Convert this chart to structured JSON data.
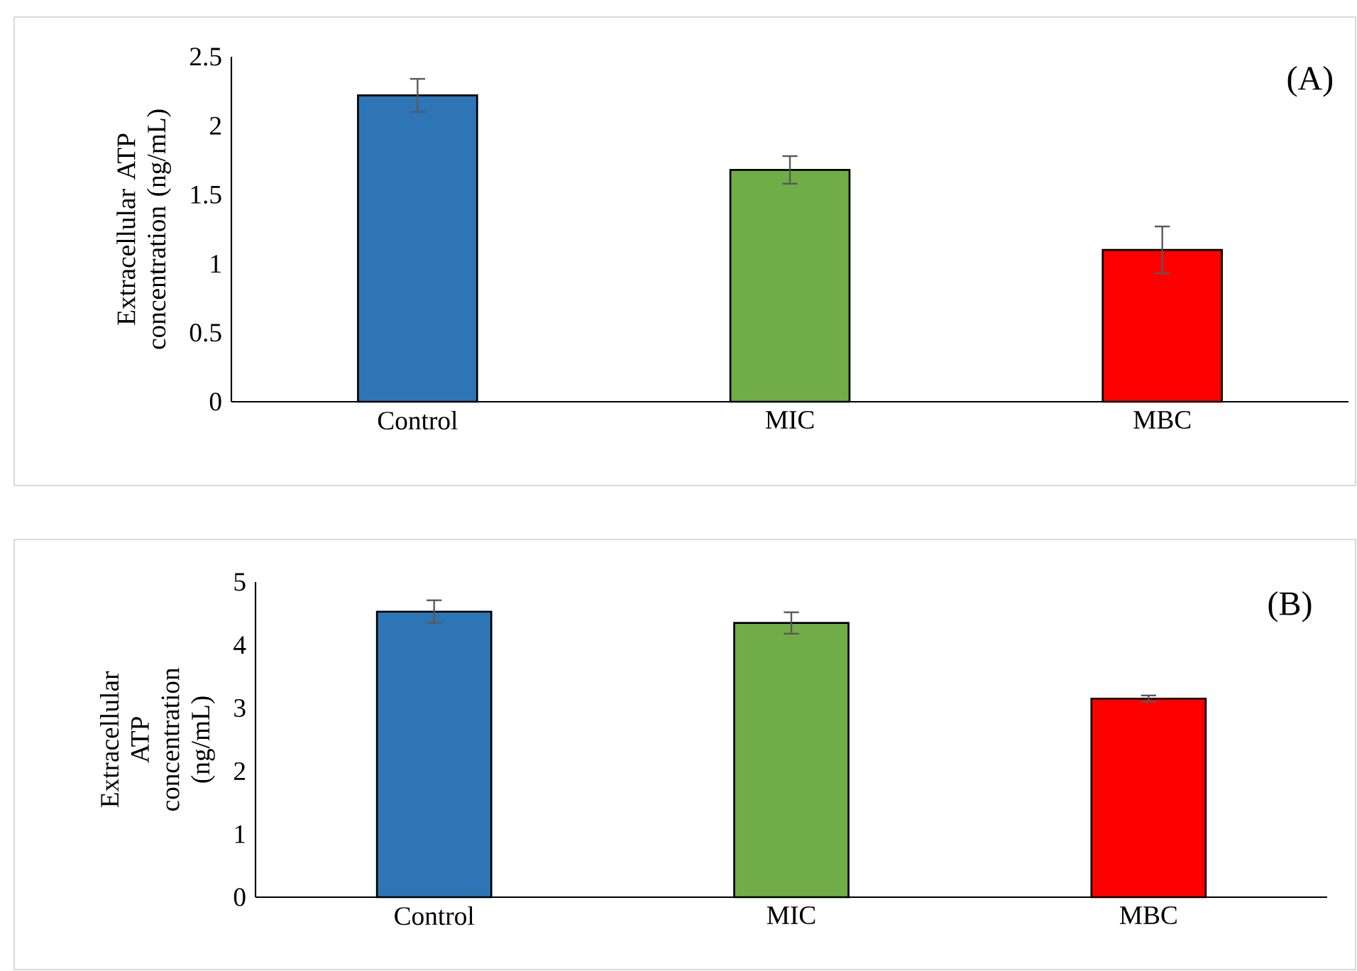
{
  "chart_data": [
    {
      "type": "bar",
      "ylabel": "Extracellular ATP concentration (ng/mL)",
      "categories": [
        "Control",
        "MIC",
        "MBC"
      ],
      "values": [
        2.22,
        1.68,
        1.1
      ],
      "errors": [
        0.12,
        0.1,
        0.17
      ],
      "colors": [
        "#2e75b6",
        "#70ad47",
        "#ff0000"
      ],
      "ylim": [
        0,
        2.5
      ],
      "yticks": [
        0,
        0.5,
        1,
        1.5,
        2,
        2.5
      ],
      "annotations": [
        "(A)"
      ]
    },
    {
      "type": "bar",
      "ylabel": "Extracellular ATP concentration (ng/mL)",
      "categories": [
        "Control",
        "MIC",
        "MBC"
      ],
      "values": [
        4.53,
        4.35,
        3.15
      ],
      "errors": [
        0.18,
        0.17,
        0.05
      ],
      "colors": [
        "#2e75b6",
        "#70ad47",
        "#ff0000"
      ],
      "ylim": [
        0,
        5
      ],
      "yticks": [
        0,
        1,
        2,
        3,
        4,
        5
      ],
      "annotations": [
        "(B)"
      ]
    }
  ]
}
